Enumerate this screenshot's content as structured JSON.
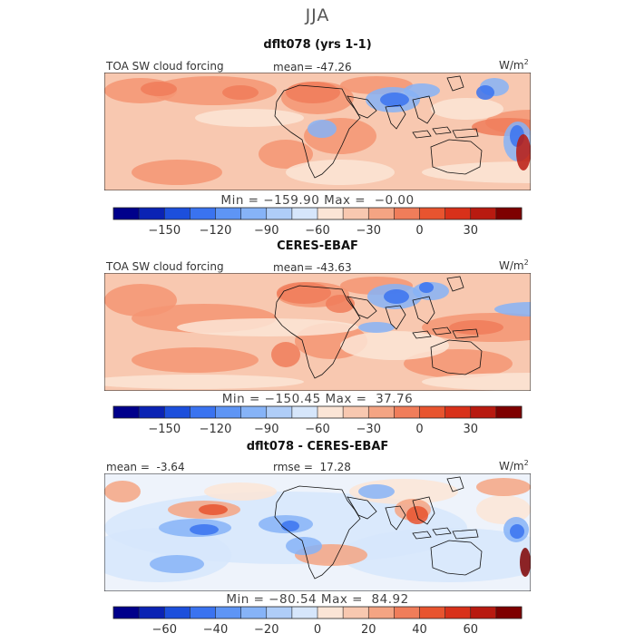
{
  "figure": {
    "season": "JJA"
  },
  "chart_data": [
    {
      "type": "heatmap",
      "title": "dflt078 (yrs 1-1)",
      "left_label": "TOA SW cloud forcing",
      "center_label": "mean= -47.26",
      "units": "W/m",
      "units_exp": "2",
      "statistics": {
        "mean": -47.26,
        "min": -159.9,
        "max": -0.0
      },
      "min_max_text": "Min = −159.90 Max =  −0.00",
      "colorbar": {
        "levels": [
          -180,
          -165,
          -150,
          -135,
          -120,
          -105,
          -90,
          -75,
          -60,
          -45,
          -30,
          -15,
          0,
          15,
          30,
          45,
          60
        ],
        "colors": [
          "#00008b",
          "#0a23b4",
          "#1c4fdc",
          "#3a73f0",
          "#5e95f5",
          "#86b3f7",
          "#afcdf8",
          "#d6e6fb",
          "#fbe5d6",
          "#f8c8b0",
          "#f4a483",
          "#f07d5a",
          "#e8542f",
          "#d8311a",
          "#b81a10",
          "#7e0000"
        ],
        "tick_values": [
          -150,
          -120,
          -90,
          -60,
          -30,
          0,
          30
        ],
        "tick_labels": [
          "−150",
          "−120",
          "−90",
          "−60",
          "−30",
          "0",
          "30"
        ]
      }
    },
    {
      "type": "heatmap",
      "title": "CERES-EBAF",
      "left_label": "TOA SW cloud forcing",
      "center_label": "mean= -43.63",
      "units": "W/m",
      "units_exp": "2",
      "statistics": {
        "mean": -43.63,
        "min": -150.45,
        "max": 37.76
      },
      "min_max_text": "Min = −150.45 Max =  37.76",
      "colorbar": {
        "levels": [
          -180,
          -165,
          -150,
          -135,
          -120,
          -105,
          -90,
          -75,
          -60,
          -45,
          -30,
          -15,
          0,
          15,
          30,
          45,
          60
        ],
        "colors": [
          "#00008b",
          "#0a23b4",
          "#1c4fdc",
          "#3a73f0",
          "#5e95f5",
          "#86b3f7",
          "#afcdf8",
          "#d6e6fb",
          "#fbe5d6",
          "#f8c8b0",
          "#f4a483",
          "#f07d5a",
          "#e8542f",
          "#d8311a",
          "#b81a10",
          "#7e0000"
        ],
        "tick_values": [
          -150,
          -120,
          -90,
          -60,
          -30,
          0,
          30
        ],
        "tick_labels": [
          "−150",
          "−120",
          "−90",
          "−60",
          "−30",
          "0",
          "30"
        ]
      }
    },
    {
      "type": "heatmap",
      "title": "dflt078 - CERES-EBAF",
      "left_label": "mean =  -3.64",
      "center_label": "rmse =  17.28",
      "units": "W/m",
      "units_exp": "2",
      "statistics": {
        "mean": -3.64,
        "rmse": 17.28,
        "min": -80.54,
        "max": 84.92
      },
      "min_max_text": "Min = −80.54 Max =  84.92",
      "colorbar": {
        "levels": [
          -80,
          -70,
          -60,
          -50,
          -40,
          -30,
          -20,
          -10,
          0,
          10,
          20,
          30,
          40,
          50,
          60,
          70,
          80
        ],
        "colors": [
          "#00008b",
          "#0a23b4",
          "#1c4fdc",
          "#3a73f0",
          "#5e95f5",
          "#86b3f7",
          "#afcdf8",
          "#d6e6fb",
          "#fbe5d6",
          "#f8c8b0",
          "#f4a483",
          "#f07d5a",
          "#e8542f",
          "#d8311a",
          "#b81a10",
          "#7e0000"
        ],
        "tick_values": [
          -60,
          -40,
          -20,
          0,
          20,
          40,
          60
        ],
        "tick_labels": [
          "−60",
          "−40",
          "−20",
          "0",
          "20",
          "40",
          "60"
        ]
      }
    }
  ]
}
